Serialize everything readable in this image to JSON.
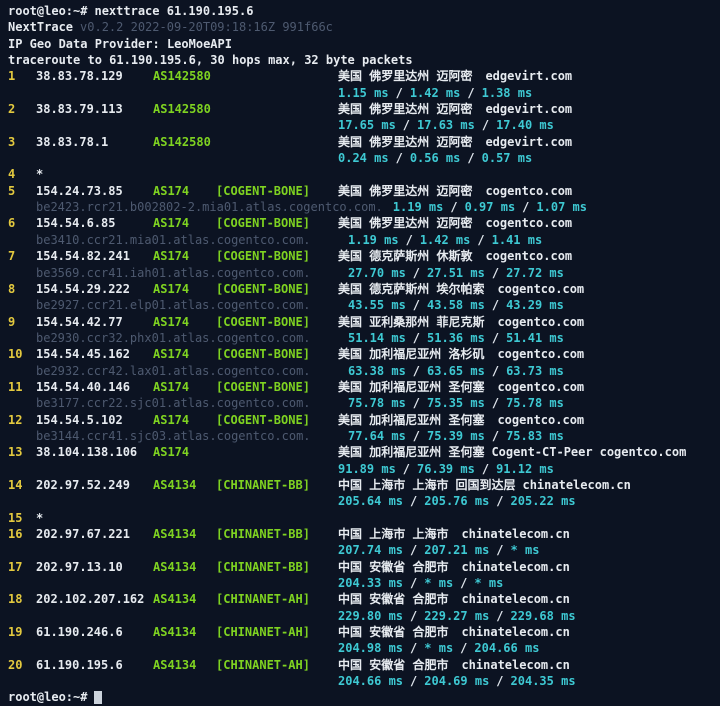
{
  "colors": {
    "bg": "#0c1322",
    "fg": "#e7ebf0",
    "yellow": "#e3c93f",
    "green": "#7fd321",
    "cyan": "#3ec9d3",
    "dim": "#4e5a70",
    "sep": "#dfe5ec",
    "cursor": "#ccd3dc"
  },
  "sep": "/",
  "session": {
    "prompt": "root@leo:~#",
    "command": "nexttrace 61.190.195.6",
    "app_name": "NextTrace",
    "version": "v0.2.2 2022-09-20T09:18:16Z 991f66c",
    "provider_line": "IP Geo Data Provider: LeoMoeAPI",
    "summary_line": "traceroute to 61.190.195.6, 30 hops max, 32 byte packets",
    "final_prompt": "root@leo:~#"
  },
  "hops": [
    {
      "num": "1",
      "ip": "38.83.78.129",
      "asn": "AS142580",
      "tag": "",
      "location": "美国 佛罗里达州 迈阿密",
      "node": "",
      "domain": "edgevirt.com",
      "rdns": "",
      "rtt": [
        "1.15 ms",
        "1.42 ms",
        "1.38 ms"
      ]
    },
    {
      "num": "2",
      "ip": "38.83.79.113",
      "asn": "AS142580",
      "tag": "",
      "location": "美国 佛罗里达州 迈阿密",
      "node": "",
      "domain": "edgevirt.com",
      "rdns": "",
      "rtt": [
        "17.65 ms",
        "17.63 ms",
        "17.40 ms"
      ]
    },
    {
      "num": "3",
      "ip": "38.83.78.1",
      "asn": "AS142580",
      "tag": "",
      "location": "美国 佛罗里达州 迈阿密",
      "node": "",
      "domain": "edgevirt.com",
      "rdns": "",
      "rtt": [
        "0.24 ms",
        "0.56 ms",
        "0.57 ms"
      ]
    },
    {
      "num": "4",
      "ip": "*",
      "asn": "",
      "tag": "",
      "location": "",
      "node": "",
      "domain": "",
      "rdns": ""
    },
    {
      "num": "5",
      "ip": "154.24.73.85",
      "asn": "AS174",
      "tag": "[COGENT-BONE]",
      "location": "美国 佛罗里达州 迈阿密",
      "node": "",
      "domain": "cogentco.com",
      "rdns": "be2423.rcr21.b002802-2.mia01.atlas.cogentco.com.",
      "rtt": [
        "1.19 ms",
        "0.97 ms",
        "1.07 ms"
      ]
    },
    {
      "num": "6",
      "ip": "154.54.6.85",
      "asn": "AS174",
      "tag": "[COGENT-BONE]",
      "location": "美国 佛罗里达州 迈阿密",
      "node": "",
      "domain": "cogentco.com",
      "rdns": "be3410.ccr21.mia01.atlas.cogentco.com.",
      "rtt": [
        "1.19 ms",
        "1.42 ms",
        "1.41 ms"
      ]
    },
    {
      "num": "7",
      "ip": "154.54.82.241",
      "asn": "AS174",
      "tag": "[COGENT-BONE]",
      "location": "美国 德克萨斯州 休斯敦",
      "node": "",
      "domain": "cogentco.com",
      "rdns": "be3569.ccr41.iah01.atlas.cogentco.com.",
      "rtt": [
        "27.70 ms",
        "27.51 ms",
        "27.72 ms"
      ]
    },
    {
      "num": "8",
      "ip": "154.54.29.222",
      "asn": "AS174",
      "tag": "[COGENT-BONE]",
      "location": "美国 德克萨斯州 埃尔帕索",
      "node": "",
      "domain": "cogentco.com",
      "rdns": "be2927.ccr21.elp01.atlas.cogentco.com.",
      "rtt": [
        "43.55 ms",
        "43.58 ms",
        "43.29 ms"
      ]
    },
    {
      "num": "9",
      "ip": "154.54.42.77",
      "asn": "AS174",
      "tag": "[COGENT-BONE]",
      "location": "美国 亚利桑那州 菲尼克斯",
      "node": "",
      "domain": "cogentco.com",
      "rdns": "be2930.ccr32.phx01.atlas.cogentco.com.",
      "rtt": [
        "51.14 ms",
        "51.36 ms",
        "51.41 ms"
      ]
    },
    {
      "num": "10",
      "ip": "154.54.45.162",
      "asn": "AS174",
      "tag": "[COGENT-BONE]",
      "location": "美国 加利福尼亚州 洛杉矶",
      "node": "",
      "domain": "cogentco.com",
      "rdns": "be2932.ccr42.lax01.atlas.cogentco.com.",
      "rtt": [
        "63.38 ms",
        "63.65 ms",
        "63.73 ms"
      ]
    },
    {
      "num": "11",
      "ip": "154.54.40.146",
      "asn": "AS174",
      "tag": "[COGENT-BONE]",
      "location": "美国 加利福尼亚州 圣何塞",
      "node": "",
      "domain": "cogentco.com",
      "rdns": "be3177.ccr22.sjc01.atlas.cogentco.com.",
      "rtt": [
        "75.78 ms",
        "75.35 ms",
        "75.78 ms"
      ]
    },
    {
      "num": "12",
      "ip": "154.54.5.102",
      "asn": "AS174",
      "tag": "[COGENT-BONE]",
      "location": "美国 加利福尼亚州 圣何塞",
      "node": "",
      "domain": "cogentco.com",
      "rdns": "be3144.ccr41.sjc03.atlas.cogentco.com.",
      "rtt": [
        "77.64 ms",
        "75.39 ms",
        "75.83 ms"
      ]
    },
    {
      "num": "13",
      "ip": "38.104.138.106",
      "asn": "AS174",
      "tag": "",
      "location": "美国 加利福尼亚州 圣何塞",
      "node": "Cogent-CT-Peer",
      "domain": "cogentco.com",
      "rdns": "",
      "rtt": [
        "91.89 ms",
        "76.39 ms",
        "91.12 ms"
      ]
    },
    {
      "num": "14",
      "ip": "202.97.52.249",
      "asn": "AS4134",
      "tag": "[CHINANET-BB]",
      "location": "中国 上海市 上海市",
      "node": "回国到达层",
      "domain": "chinatelecom.cn",
      "rdns": "",
      "rtt": [
        "205.64 ms",
        "205.76 ms",
        "205.22 ms"
      ]
    },
    {
      "num": "15",
      "ip": "*",
      "asn": "",
      "tag": "",
      "location": "",
      "node": "",
      "domain": "",
      "rdns": ""
    },
    {
      "num": "16",
      "ip": "202.97.67.221",
      "asn": "AS4134",
      "tag": "[CHINANET-BB]",
      "location": "中国 上海市 上海市",
      "node": "",
      "domain": "chinatelecom.cn",
      "rdns": "",
      "rtt": [
        "207.74 ms",
        "207.21 ms",
        "* ms"
      ]
    },
    {
      "num": "17",
      "ip": "202.97.13.10",
      "asn": "AS4134",
      "tag": "[CHINANET-BB]",
      "location": "中国 安徽省 合肥市",
      "node": "",
      "domain": "chinatelecom.cn",
      "rdns": "",
      "rtt": [
        "204.33 ms",
        "* ms",
        "* ms"
      ]
    },
    {
      "num": "18",
      "ip": "202.102.207.162",
      "asn": "AS4134",
      "tag": "[CHINANET-AH]",
      "location": "中国 安徽省 合肥市",
      "node": "",
      "domain": "chinatelecom.cn",
      "rdns": "",
      "rtt": [
        "229.80 ms",
        "229.27 ms",
        "229.68 ms"
      ]
    },
    {
      "num": "19",
      "ip": "61.190.246.6",
      "asn": "AS4134",
      "tag": "[CHINANET-AH]",
      "location": "中国 安徽省 合肥市",
      "node": "",
      "domain": "chinatelecom.cn",
      "rdns": "",
      "rtt": [
        "204.98 ms",
        "* ms",
        "204.66 ms"
      ]
    },
    {
      "num": "20",
      "ip": "61.190.195.6",
      "asn": "AS4134",
      "tag": "[CHINANET-AH]",
      "location": "中国 安徽省 合肥市",
      "node": "",
      "domain": "chinatelecom.cn",
      "rdns": "",
      "rtt": [
        "204.66 ms",
        "204.69 ms",
        "204.35 ms"
      ]
    }
  ]
}
